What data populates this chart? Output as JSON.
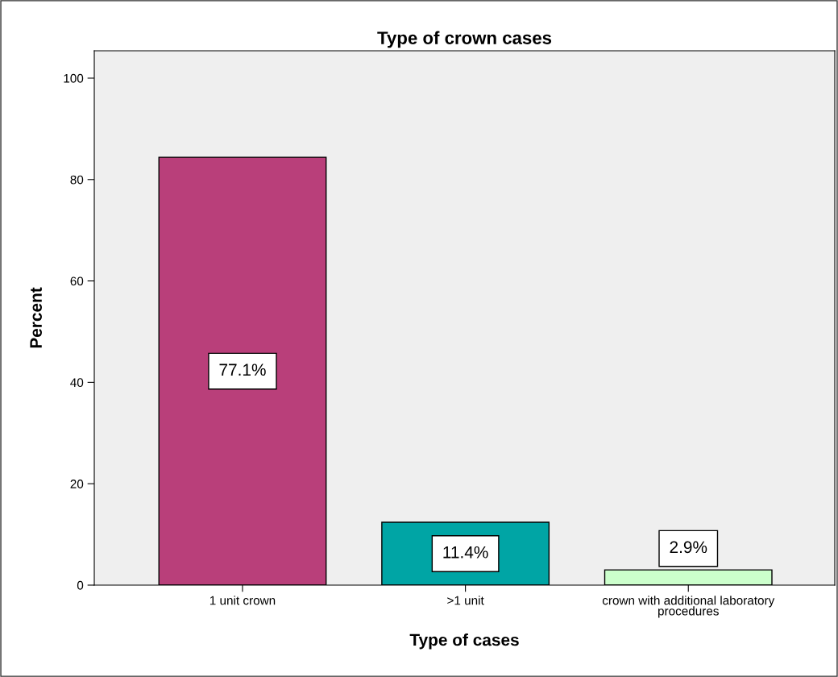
{
  "chart_data": {
    "type": "bar",
    "title": "Type of crown cases",
    "xlabel": "Type of cases",
    "ylabel": "Percent",
    "categories": [
      "1 unit crown",
      ">1 unit",
      "crown with additional laboratory procedures"
    ],
    "values": [
      84.4,
      12.4,
      3.0
    ],
    "colors": [
      "#b93f7a",
      "#00a5a5",
      "#ccffcc"
    ],
    "annotations": [
      "77.1%",
      "11.4%",
      "2.9%"
    ],
    "ylim": [
      0,
      105.4
    ],
    "yticks": [
      0,
      20,
      40,
      60,
      80,
      100
    ],
    "grid": false,
    "legend": false
  }
}
